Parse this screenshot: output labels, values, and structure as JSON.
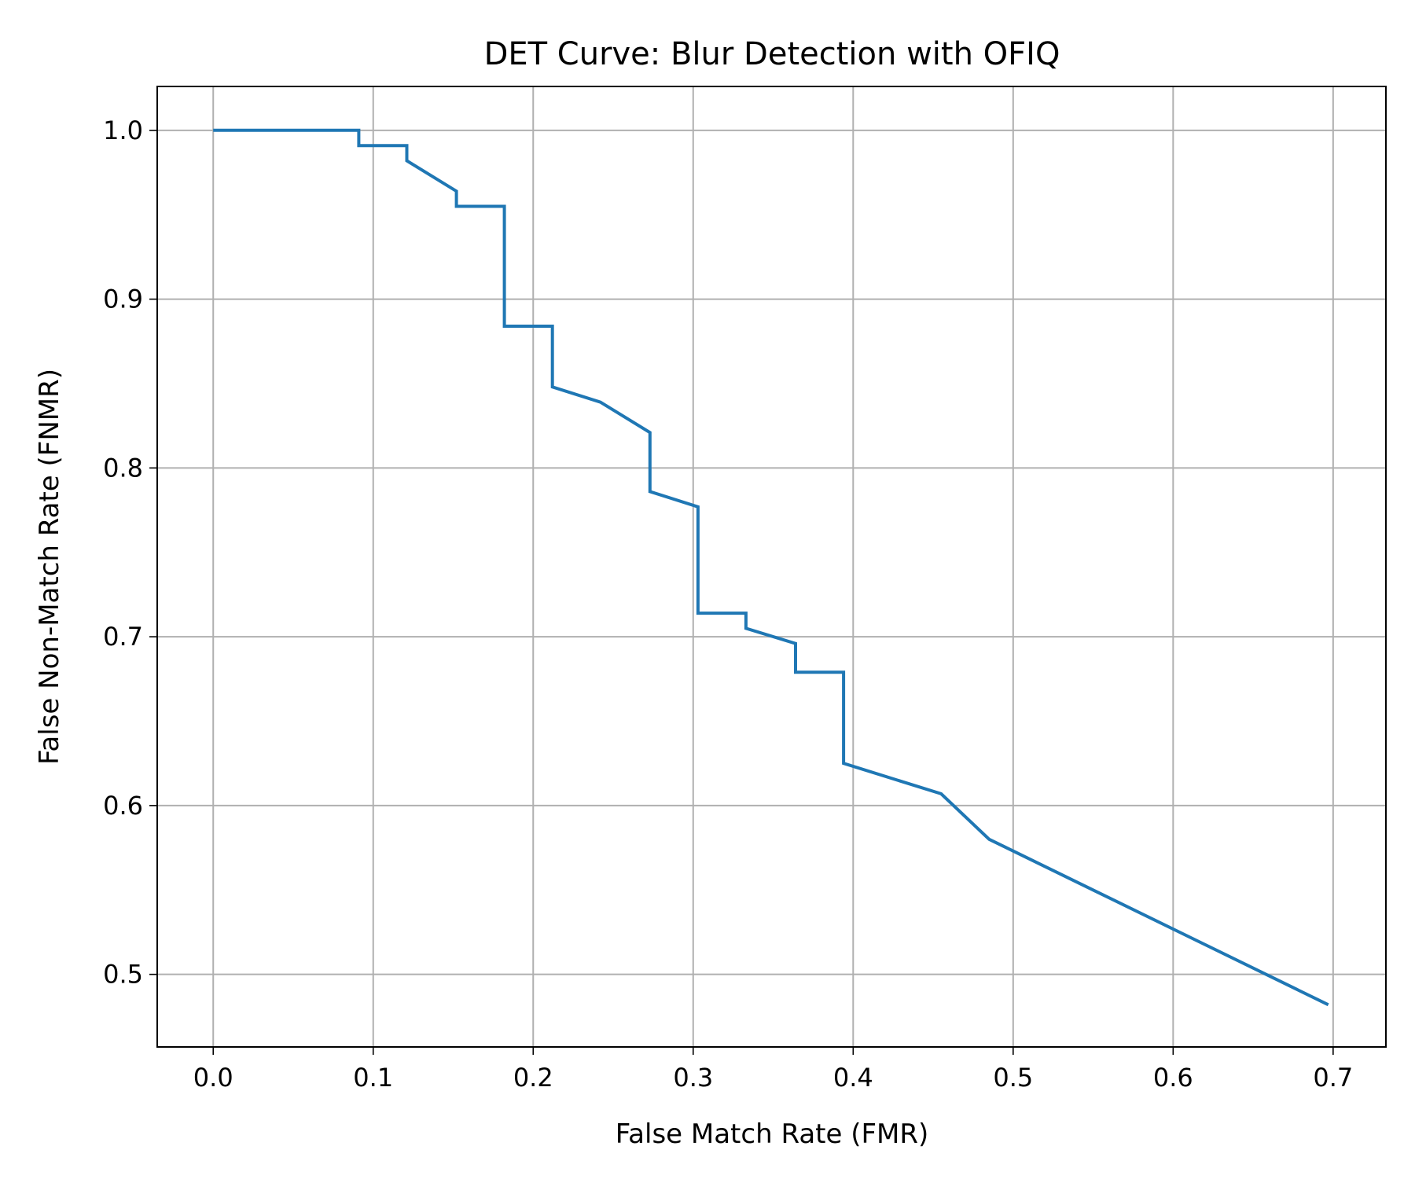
{
  "chart_data": {
    "type": "line",
    "title": "DET Curve: Blur Detection with OFIQ",
    "xlabel": "False Match Rate (FMR)",
    "ylabel": "False Non-Match Rate (FNMR)",
    "xlim": [
      -0.035,
      0.733
    ],
    "ylim": [
      0.457,
      1.026
    ],
    "xticks": [
      "0.0",
      "0.1",
      "0.2",
      "0.3",
      "0.4",
      "0.5",
      "0.6",
      "0.7"
    ],
    "yticks": [
      "0.5",
      "0.6",
      "0.7",
      "0.8",
      "0.9",
      "1.0"
    ],
    "grid": true,
    "series": [
      {
        "color": "#1f77b4",
        "x": [
          0.0,
          0.091,
          0.091,
          0.121,
          0.121,
          0.152,
          0.152,
          0.182,
          0.182,
          0.212,
          0.212,
          0.242,
          0.273,
          0.273,
          0.303,
          0.303,
          0.333,
          0.333,
          0.364,
          0.364,
          0.394,
          0.394,
          0.455,
          0.485,
          0.697
        ],
        "y": [
          1.0,
          1.0,
          0.991,
          0.991,
          0.982,
          0.964,
          0.955,
          0.955,
          0.884,
          0.884,
          0.848,
          0.839,
          0.821,
          0.786,
          0.777,
          0.714,
          0.714,
          0.705,
          0.696,
          0.679,
          0.679,
          0.625,
          0.607,
          0.58,
          0.482
        ]
      }
    ]
  }
}
